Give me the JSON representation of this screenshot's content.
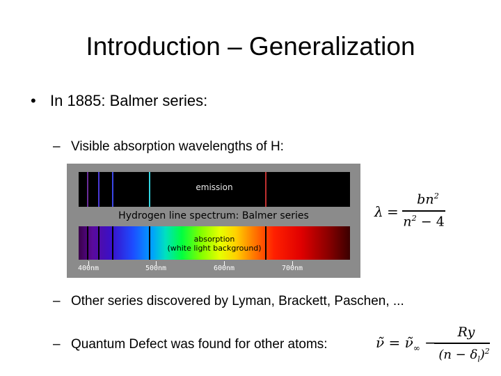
{
  "slide": {
    "title": "Introduction – Generalization",
    "bullet1": {
      "marker": "•",
      "text": "In 1885: Balmer series:"
    },
    "sub_bullets": [
      {
        "marker": "–",
        "text": "Visible absorption wavelengths of H:"
      },
      {
        "marker": "–",
        "text": "Other series discovered by Lyman, Brackett, Paschen, ..."
      },
      {
        "marker": "–",
        "text": "Quantum Defect was found for other atoms:"
      }
    ]
  },
  "figure": {
    "emission_label": "emission",
    "series_label": "Hydrogen line spectrum: Balmer series",
    "absorption_label_1": "absorption",
    "absorption_label_2": "(white light background)",
    "tick_labels": [
      "400nm",
      "500nm",
      "600nm",
      "700nm"
    ],
    "line_colors": [
      "#6a2c9a",
      "#4a3ad8",
      "#3b46e8",
      "#33d4e0",
      "#c03030"
    ]
  },
  "formulas": {
    "balmer": {
      "lhs": "λ",
      "eq": "=",
      "numerator": "bn",
      "num_exp": "2",
      "denominator": "n",
      "den_exp": "2",
      "den_tail": " − 4"
    },
    "quantum_defect": {
      "lhs": "ν̃ = ν̃",
      "lhs_sub": "∞",
      "minus": " −",
      "numerator": "Ry",
      "denominator": "(n − δ",
      "den_sub": "l",
      "den_close": ")",
      "den_exp": "2"
    }
  }
}
